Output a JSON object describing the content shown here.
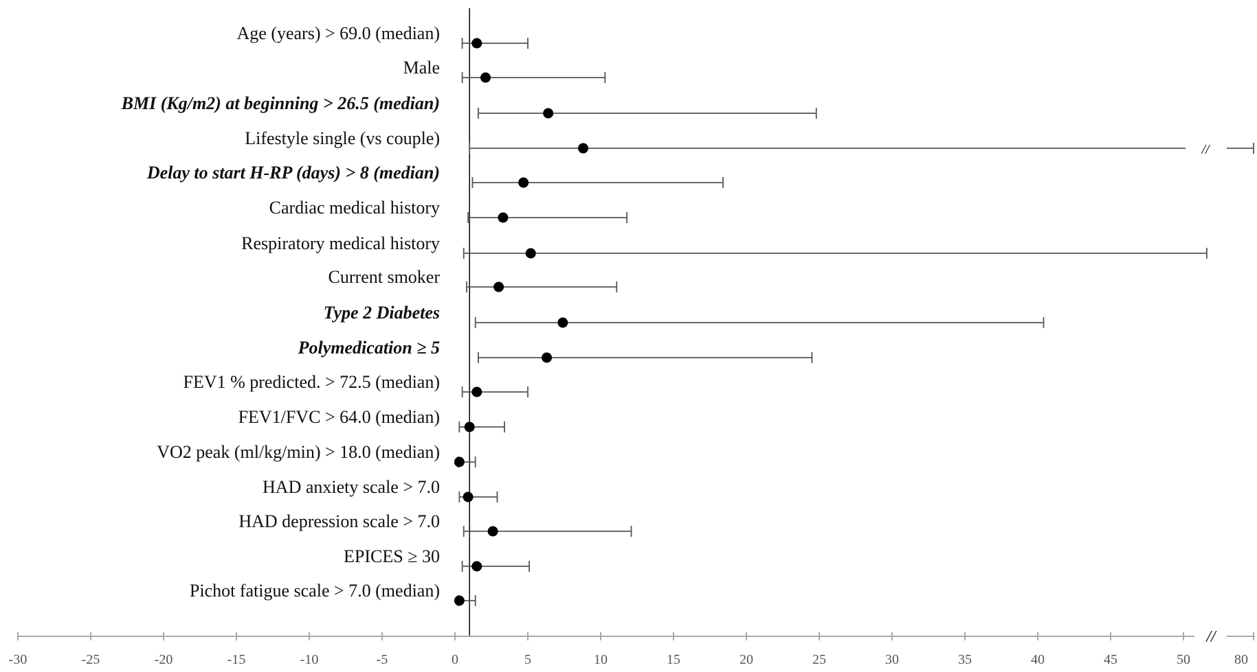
{
  "chart_data": {
    "type": "forest",
    "title": "",
    "xlabel": "",
    "ylabel": "",
    "reference_line": 1,
    "axis": {
      "xlim": [
        -30,
        52
      ],
      "ticks": [
        -30,
        -25,
        -20,
        -15,
        -10,
        -5,
        0,
        5,
        10,
        15,
        20,
        25,
        30,
        35,
        40,
        45,
        50
      ],
      "broken_axis": true,
      "extra_tick_label": "80",
      "break_symbol": "//"
    },
    "rows": [
      {
        "label": "Age (years) > 69.0 (median)",
        "bold": false,
        "estimate": 1.5,
        "lower": 0.5,
        "upper": 5.0
      },
      {
        "label": "Male",
        "bold": false,
        "estimate": 2.1,
        "lower": 0.5,
        "upper": 10.3
      },
      {
        "label": "BMI (Kg/m2) at beginning  > 26.5 (median)",
        "bold": true,
        "estimate": 6.4,
        "lower": 1.6,
        "upper": 24.8
      },
      {
        "label": "Lifestyle single (vs couple)",
        "bold": false,
        "estimate": 8.8,
        "lower": 1.0,
        "upper": 80.0,
        "upper_broken": true
      },
      {
        "label": "Delay to start H-RP (days) > 8 (median)",
        "bold": true,
        "estimate": 4.7,
        "lower": 1.2,
        "upper": 18.4
      },
      {
        "label": "Cardiac medical history",
        "bold": false,
        "estimate": 3.3,
        "lower": 0.9,
        "upper": 11.8
      },
      {
        "label": "Respiratory medical history",
        "bold": false,
        "estimate": 5.2,
        "lower": 0.6,
        "upper": 51.6
      },
      {
        "label": "Current smoker",
        "bold": false,
        "estimate": 3.0,
        "lower": 0.8,
        "upper": 11.1
      },
      {
        "label": "Type 2 Diabetes",
        "bold": true,
        "estimate": 7.4,
        "lower": 1.4,
        "upper": 40.4
      },
      {
        "label": "Polymedication ≥ 5",
        "bold": true,
        "estimate": 6.3,
        "lower": 1.6,
        "upper": 24.5
      },
      {
        "label": "FEV1  % predicted. > 72.5 (median)",
        "bold": false,
        "estimate": 1.5,
        "lower": 0.5,
        "upper": 5.0
      },
      {
        "label": "FEV1/FVC  > 64.0 (median)",
        "bold": false,
        "estimate": 1.0,
        "lower": 0.3,
        "upper": 3.4
      },
      {
        "label": "VO2 peak (ml/kg/min) > 18.0 (median)",
        "bold": false,
        "estimate": 0.3,
        "lower": 0.2,
        "upper": 1.4
      },
      {
        "label": "HAD  anxiety scale > 7.0",
        "bold": false,
        "estimate": 0.9,
        "lower": 0.3,
        "upper": 2.9
      },
      {
        "label": "HAD  depression scale > 7.0",
        "bold": false,
        "estimate": 2.6,
        "lower": 0.6,
        "upper": 12.1
      },
      {
        "label": "EPICES ≥ 30",
        "bold": false,
        "estimate": 1.5,
        "lower": 0.5,
        "upper": 5.1
      },
      {
        "label": "Pichot fatigue scale > 7.0 (median)",
        "bold": false,
        "estimate": 0.3,
        "lower": 0.2,
        "upper": 1.4
      }
    ],
    "grid": false,
    "legend": "none"
  },
  "colors": {
    "line": "#555555",
    "point": "#000000",
    "axis": "#aaaaaa",
    "reference": "#000000",
    "text": "#111111"
  }
}
